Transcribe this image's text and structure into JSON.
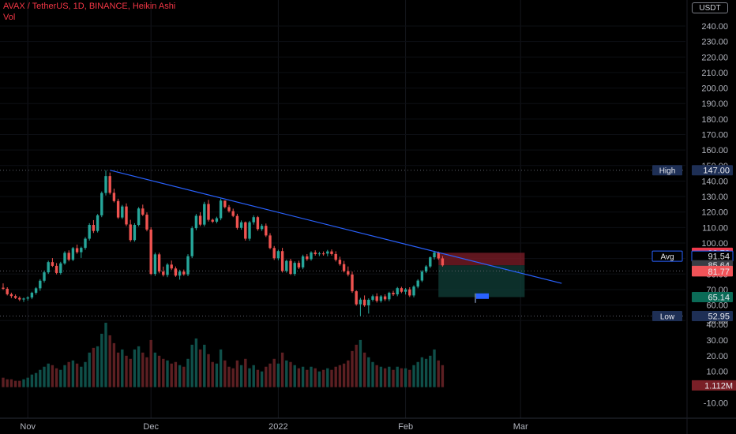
{
  "header": {
    "title": "AVAX / TetherUS, 1D, BINANCE, Heikin Ashi",
    "vol_label": "Vol",
    "currency": "USDT"
  },
  "colors": {
    "up": "#26a69a",
    "down": "#ef5350",
    "trendline": "#2962ff",
    "background": "#000000",
    "stop_zone": "#7f1d28",
    "target_zone": "#0f3b35",
    "label_dark": "#1e2f55"
  },
  "icons": [
    "flag-icon"
  ],
  "chart_data": {
    "type": "candlestick",
    "title": "AVAX / TetherUS, 1D, BINANCE, Heikin Ashi",
    "price_axis": {
      "range": [
        48,
        250
      ],
      "ticks": [
        "240.00",
        "230.00",
        "220.00",
        "210.00",
        "200.00",
        "190.00",
        "180.00",
        "170.00",
        "160.00",
        "150.00",
        "140.00",
        "130.00",
        "120.00",
        "110.00",
        "100.00",
        "90.00",
        "80.00",
        "70.00",
        "60.00",
        "50.00"
      ],
      "tick_values": [
        240,
        230,
        220,
        210,
        200,
        190,
        180,
        170,
        160,
        150,
        140,
        130,
        120,
        110,
        100,
        90,
        80,
        70,
        60,
        50
      ]
    },
    "volume_axis": {
      "range": [
        -12,
        50
      ],
      "ticks": [
        "40.00",
        "30.00",
        "20.00",
        "10.00",
        "-10.00"
      ],
      "tick_values": [
        40,
        30,
        20,
        10,
        -10
      ],
      "current_label": "1.112M",
      "current_value": 1.112
    },
    "time_axis": {
      "labels": [
        "Nov",
        "Dec",
        "2022",
        "Feb",
        "Mar"
      ],
      "label_index": [
        6,
        36,
        67,
        98,
        126
      ]
    },
    "price_labels": [
      {
        "label": "High",
        "value_text": "147.00",
        "value": 147.0
      },
      {
        "label": "",
        "value_text": "93.73",
        "value": 93.73
      },
      {
        "label": "Avg",
        "value_text": "91.54",
        "value": 91.54
      },
      {
        "label": "",
        "value_text": "85.64",
        "value": 85.64
      },
      {
        "label": "",
        "value_text": "81.99",
        "value": 81.99
      },
      {
        "label": "",
        "value_text": "81.77",
        "value": 81.77
      },
      {
        "label": "",
        "value_text": "65.14",
        "value": 65.14
      },
      {
        "label": "Low",
        "value_text": "52.95",
        "value": 52.95
      }
    ],
    "trendline": {
      "start": {
        "index": 26,
        "price": 147
      },
      "end": {
        "index": 136,
        "price": 74
      }
    },
    "position": {
      "entry": 85.64,
      "stop": 93.73,
      "target": 65.14,
      "start_index": 106,
      "end_index": 127
    },
    "flag": {
      "index": 115,
      "price": 66
    },
    "candles": [
      [
        71.2,
        74.0,
        69.8,
        70.5
      ],
      [
        70.5,
        71.5,
        66.2,
        67.0
      ],
      [
        67.0,
        68.0,
        64.5,
        65.8
      ],
      [
        65.8,
        66.8,
        63.9,
        64.6
      ],
      [
        64.6,
        65.6,
        62.6,
        63.6
      ],
      [
        63.6,
        64.8,
        62.0,
        64.2
      ],
      [
        64.2,
        65.7,
        62.9,
        64.9
      ],
      [
        64.9,
        68.6,
        63.8,
        67.9
      ],
      [
        67.9,
        71.6,
        66.7,
        70.8
      ],
      [
        70.8,
        76.7,
        69.2,
        75.7
      ],
      [
        75.7,
        82.2,
        74.5,
        81.1
      ],
      [
        81.1,
        88.6,
        80.1,
        87.7
      ],
      [
        87.7,
        90.3,
        84.6,
        85.3
      ],
      [
        85.3,
        87.1,
        79.8,
        80.7
      ],
      [
        80.7,
        87.9,
        79.6,
        86.9
      ],
      [
        86.9,
        94.7,
        86.0,
        93.7
      ],
      [
        93.7,
        95.3,
        88.2,
        89.3
      ],
      [
        89.3,
        97.5,
        88.3,
        96.7
      ],
      [
        96.7,
        99.0,
        93.1,
        94.1
      ],
      [
        94.1,
        97.7,
        90.4,
        96.9
      ],
      [
        96.9,
        103.8,
        95.7,
        102.8
      ],
      [
        102.8,
        112.8,
        101.6,
        111.7
      ],
      [
        111.7,
        114.8,
        106.5,
        107.8
      ],
      [
        107.8,
        118.7,
        106.8,
        117.9
      ],
      [
        117.9,
        133.3,
        116.7,
        132.3
      ],
      [
        132.3,
        147.0,
        130.7,
        143.2
      ],
      [
        143.2,
        145.5,
        131.3,
        132.4
      ],
      [
        132.4,
        135.1,
        126.2,
        127.1
      ],
      [
        127.1,
        128.6,
        115.6,
        116.5
      ],
      [
        116.5,
        124.6,
        115.5,
        123.6
      ],
      [
        123.6,
        125.6,
        110.9,
        112.0
      ],
      [
        112.0,
        115.0,
        100.8,
        101.9
      ],
      [
        101.9,
        112.8,
        100.9,
        111.7
      ],
      [
        111.7,
        123.2,
        110.8,
        122.3
      ],
      [
        122.3,
        124.8,
        117.4,
        118.3
      ],
      [
        118.3,
        119.8,
        107.6,
        108.7
      ],
      [
        108.7,
        110.2,
        79.3,
        80.1
      ],
      [
        80.1,
        93.8,
        78.8,
        92.7
      ],
      [
        92.7,
        93.8,
        80.5,
        81.6
      ],
      [
        81.6,
        84.8,
        78.4,
        79.4
      ],
      [
        79.4,
        87.1,
        78.0,
        86.1
      ],
      [
        86.1,
        88.7,
        82.6,
        83.6
      ],
      [
        83.6,
        84.9,
        78.2,
        79.0
      ],
      [
        79.0,
        82.8,
        76.4,
        81.6
      ],
      [
        81.6,
        82.9,
        78.9,
        79.8
      ],
      [
        79.8,
        92.8,
        78.6,
        91.5
      ],
      [
        91.5,
        110.8,
        90.3,
        109.6
      ],
      [
        109.6,
        118.8,
        108.3,
        117.6
      ],
      [
        117.6,
        119.9,
        110.9,
        111.9
      ],
      [
        111.9,
        126.6,
        110.7,
        125.2
      ],
      [
        125.2,
        127.9,
        113.9,
        115.0
      ],
      [
        115.0,
        115.8,
        112.9,
        113.8
      ],
      [
        113.8,
        117.0,
        112.7,
        116.0
      ],
      [
        116.0,
        128.6,
        114.7,
        127.4
      ],
      [
        127.4,
        127.4,
        122.3,
        123.2
      ],
      [
        123.2,
        124.6,
        119.7,
        120.6
      ],
      [
        120.6,
        122.2,
        116.7,
        117.5
      ],
      [
        117.5,
        118.9,
        108.7,
        109.8
      ],
      [
        109.8,
        114.6,
        108.6,
        113.4
      ],
      [
        113.4,
        113.9,
        101.6,
        102.8
      ],
      [
        102.8,
        114.3,
        101.5,
        113.4
      ],
      [
        113.4,
        117.9,
        111.9,
        116.7
      ],
      [
        116.7,
        117.5,
        107.9,
        109.0
      ],
      [
        109.0,
        112.3,
        107.8,
        111.1
      ],
      [
        111.1,
        112.6,
        103.9,
        104.9
      ],
      [
        104.9,
        106.4,
        96.0,
        96.8
      ],
      [
        96.8,
        98.1,
        89.1,
        90.2
      ],
      [
        90.2,
        95.7,
        88.9,
        94.8
      ],
      [
        94.8,
        96.9,
        81.0,
        82.0
      ],
      [
        82.0,
        89.3,
        80.9,
        88.5
      ],
      [
        88.5,
        89.8,
        79.4,
        80.1
      ],
      [
        80.1,
        88.2,
        78.8,
        87.2
      ],
      [
        87.2,
        88.6,
        83.2,
        84.3
      ],
      [
        84.3,
        92.5,
        83.1,
        91.4
      ],
      [
        91.4,
        92.9,
        88.5,
        89.6
      ],
      [
        89.6,
        94.7,
        88.6,
        93.9
      ],
      [
        93.9,
        95.3,
        91.9,
        92.9
      ],
      [
        92.9,
        94.4,
        91.6,
        93.3
      ],
      [
        93.3,
        94.6,
        91.9,
        93.2
      ],
      [
        93.2,
        95.6,
        91.5,
        94.6
      ],
      [
        94.6,
        95.9,
        91.9,
        92.9
      ],
      [
        92.9,
        94.7,
        88.1,
        89.2
      ],
      [
        89.2,
        91.2,
        85.4,
        86.4
      ],
      [
        86.4,
        88.5,
        81.0,
        81.9
      ],
      [
        81.9,
        84.9,
        78.5,
        79.7
      ],
      [
        79.7,
        81.6,
        67.9,
        68.9
      ],
      [
        68.9,
        69.5,
        59.6,
        60.5
      ],
      [
        60.5,
        64.6,
        52.9,
        63.5
      ],
      [
        63.5,
        66.2,
        58.9,
        59.8
      ],
      [
        59.8,
        64.3,
        54.5,
        63.4
      ],
      [
        63.4,
        66.7,
        62.3,
        65.7
      ],
      [
        65.7,
        67.6,
        61.6,
        62.7
      ],
      [
        62.7,
        66.4,
        61.6,
        65.6
      ],
      [
        65.6,
        66.9,
        62.6,
        63.7
      ],
      [
        63.7,
        68.6,
        62.5,
        67.9
      ],
      [
        67.9,
        69.2,
        65.9,
        66.9
      ],
      [
        66.9,
        71.7,
        65.7,
        70.9
      ],
      [
        70.9,
        71.8,
        67.7,
        68.6
      ],
      [
        68.6,
        71.0,
        66.8,
        70.1
      ],
      [
        70.1,
        71.5,
        65.2,
        66.2
      ],
      [
        66.2,
        72.8,
        65.0,
        71.9
      ],
      [
        71.9,
        76.7,
        70.8,
        75.8
      ],
      [
        75.8,
        82.6,
        74.8,
        81.6
      ],
      [
        81.6,
        85.8,
        80.6,
        84.9
      ],
      [
        84.9,
        91.4,
        83.9,
        90.8
      ],
      [
        90.8,
        95.0,
        89.4,
        93.9
      ],
      [
        93.9,
        94.5,
        89.2,
        90.1
      ],
      [
        90.1,
        91.6,
        84.8,
        85.6
      ]
    ],
    "volumes": [
      6,
      5,
      5,
      4,
      4,
      5,
      6,
      8,
      9,
      11,
      13,
      15,
      14,
      12,
      11,
      14,
      16,
      17,
      15,
      13,
      16,
      22,
      25,
      26,
      34,
      41,
      33,
      28,
      22,
      24,
      20,
      18,
      24,
      26,
      22,
      19,
      30,
      22,
      20,
      18,
      17,
      15,
      16,
      14,
      13,
      18,
      27,
      31,
      24,
      27,
      21,
      16,
      15,
      24,
      17,
      13,
      12,
      17,
      14,
      18,
      12,
      14,
      11,
      10,
      13,
      15,
      18,
      15,
      22,
      17,
      16,
      14,
      12,
      13,
      11,
      13,
      12,
      10,
      11,
      12,
      11,
      13,
      14,
      15,
      17,
      23,
      27,
      30,
      22,
      19,
      16,
      14,
      13,
      12,
      13,
      11,
      13,
      12,
      12,
      11,
      14,
      16,
      19,
      18,
      20,
      24,
      17,
      14
    ]
  }
}
